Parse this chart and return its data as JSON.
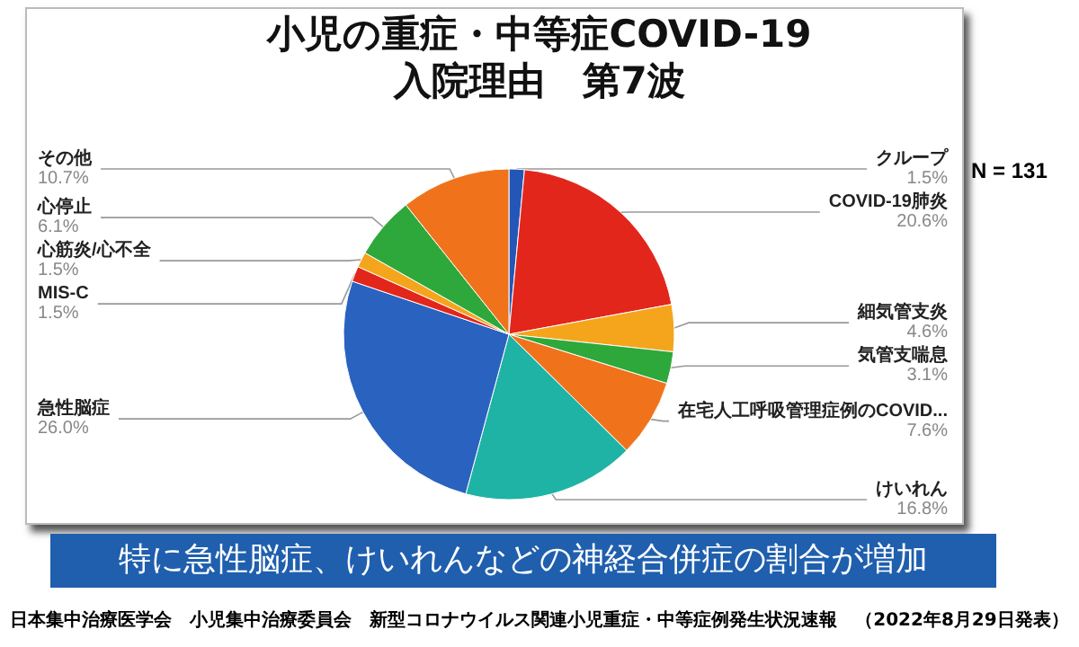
{
  "chart_data": {
    "type": "pie",
    "title": "小児の重症・中等症COVID-19\n入院理由　第7波",
    "categories": [
      "クループ",
      "COVID-19肺炎",
      "細気管支炎",
      "気管支喘息",
      "在宅人工呼吸管理症例のCOVID...",
      "けいれん",
      "急性脳症",
      "MIS-C",
      "心筋炎/心不全",
      "心停止",
      "その他"
    ],
    "values": [
      1.5,
      20.6,
      4.6,
      3.1,
      7.6,
      16.8,
      26.0,
      1.5,
      1.5,
      6.1,
      10.7
    ],
    "value_labels": [
      "1.5%",
      "20.6%",
      "4.6%",
      "3.1%",
      "7.6%",
      "16.8%",
      "26.0%",
      "1.5%",
      "1.5%",
      "6.1%",
      "10.7%"
    ],
    "colors": [
      "#2456b8",
      "#e3261b",
      "#f5a51c",
      "#2ea83a",
      "#f0731c",
      "#1fb3a5",
      "#2a62c0",
      "#e3261b",
      "#f5a51c",
      "#2ea83a",
      "#f0731c"
    ],
    "legend": false,
    "annotations": [
      "N = 131",
      "特に急性脳症、けいれんなどの神経合併症の割合が増加",
      "日本集中治療医学会　小児集中治療委員会　新型コロナウイルス関連小児重症・中等症例発生状況速報　（2022年8月29日発表）"
    ]
  }
}
